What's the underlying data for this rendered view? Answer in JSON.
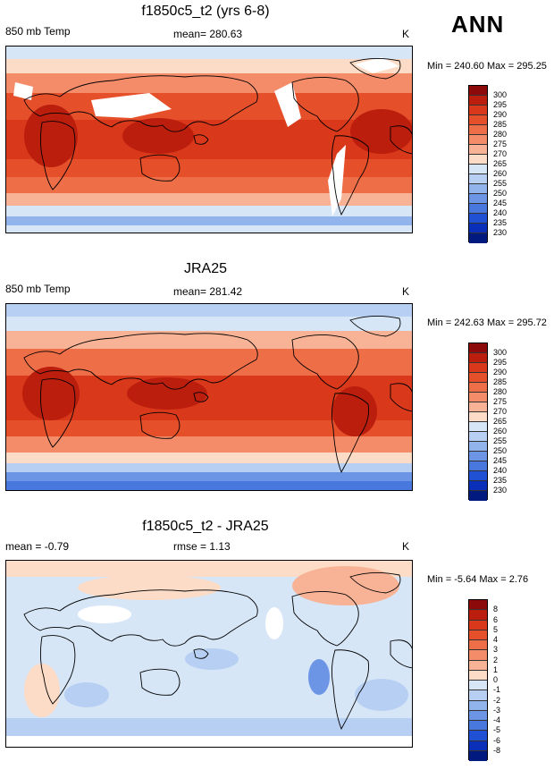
{
  "season": "ANN",
  "panels": [
    {
      "title": "f1850c5_t2 (yrs 6-8)",
      "left_label": "850 mb Temp",
      "center_label": "mean= 280.63",
      "units": "K",
      "minmax": "Min = 240.60 Max = 295.25",
      "levels": [
        "300",
        "295",
        "290",
        "285",
        "280",
        "275",
        "270",
        "265",
        "260",
        "255",
        "250",
        "245",
        "240",
        "235",
        "230"
      ],
      "colors": [
        "#8c0a0a",
        "#bb1e0d",
        "#d9381a",
        "#e5502b",
        "#ee6e48",
        "#f48c6a",
        "#f8b396",
        "#fcdcc6",
        "#d6e6f7",
        "#b6cff2",
        "#91b4ed",
        "#6c95e6",
        "#4877de",
        "#2050d4",
        "#0a2fb8",
        "#001a80"
      ]
    },
    {
      "title": "JRA25",
      "left_label": "850 mb Temp",
      "center_label": "mean= 281.42",
      "units": "K",
      "minmax": "Min = 242.63 Max = 295.72",
      "levels": [
        "300",
        "295",
        "290",
        "285",
        "280",
        "275",
        "270",
        "265",
        "260",
        "255",
        "250",
        "245",
        "240",
        "235",
        "230"
      ],
      "colors": [
        "#8c0a0a",
        "#bb1e0d",
        "#d9381a",
        "#e5502b",
        "#ee6e48",
        "#f48c6a",
        "#f8b396",
        "#fcdcc6",
        "#d6e6f7",
        "#b6cff2",
        "#91b4ed",
        "#6c95e6",
        "#4877de",
        "#2050d4",
        "#0a2fb8",
        "#001a80"
      ]
    },
    {
      "title": "f1850c5_t2 - JRA25",
      "left_label": "mean =  -0.79",
      "center_label": "rmse =   1.13",
      "units": "K",
      "minmax": "Min =  -5.64 Max =   2.76",
      "levels": [
        "8",
        "6",
        "5",
        "4",
        "3",
        "2",
        "1",
        "0",
        "-1",
        "-2",
        "-3",
        "-4",
        "-5",
        "-6",
        "-8"
      ],
      "colors": [
        "#8c0a0a",
        "#bb1e0d",
        "#d9381a",
        "#e5502b",
        "#ee6e48",
        "#f48c6a",
        "#f8b396",
        "#fcdcc6",
        "#d6e6f7",
        "#b6cff2",
        "#91b4ed",
        "#6c95e6",
        "#4877de",
        "#2050d4",
        "#0a2fb8",
        "#001a80"
      ]
    }
  ]
}
